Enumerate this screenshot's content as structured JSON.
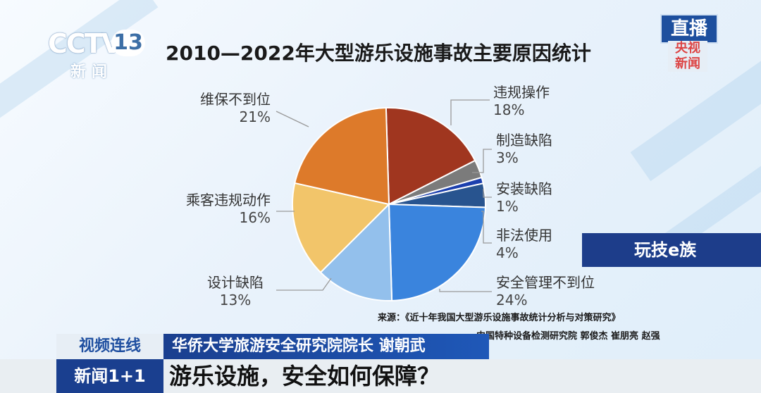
{
  "logo": {
    "brand": "CCTV",
    "channel": "13",
    "sub": "新闻"
  },
  "live_badge": {
    "top": "直播",
    "sub": "央视 新闻"
  },
  "tag": "玩技e族",
  "chart_data": {
    "type": "pie",
    "title": "2010—2022年大型游乐设施事故主要原因统计",
    "slices": [
      {
        "name": "违规操作",
        "value": 18,
        "label": "18%",
        "color": "#a0361f"
      },
      {
        "name": "制造缺陷",
        "value": 3,
        "label": "3%",
        "color": "#7b7b7b"
      },
      {
        "name": "安装缺陷",
        "value": 1,
        "label": "1%",
        "color": "#1b3fae"
      },
      {
        "name": "非法使用",
        "value": 4,
        "label": "4%",
        "color": "#28548f"
      },
      {
        "name": "安全管理不到位",
        "value": 24,
        "label": "24%",
        "color": "#3a84dd"
      },
      {
        "name": "设计缺陷",
        "value": 13,
        "label": "13%",
        "color": "#93c0ec"
      },
      {
        "name": "乘客违规动作",
        "value": 16,
        "label": "16%",
        "color": "#f2c56a"
      },
      {
        "name": "维保不到位",
        "value": 21,
        "label": "21%",
        "color": "#dd7a2a"
      }
    ]
  },
  "source": {
    "line1": "来源：《近十年我国大型游乐设施事故统计分析与对策研究》",
    "line2": "中国特种设备检测研究院 郭俊杰 崔朋亮 赵强"
  },
  "lower_third": {
    "segment": "视频连线",
    "speaker": "华侨大学旅游安全研究院院长 谢朝武",
    "program": "新闻1+1",
    "headline": "游乐设施，安全如何保障？"
  }
}
